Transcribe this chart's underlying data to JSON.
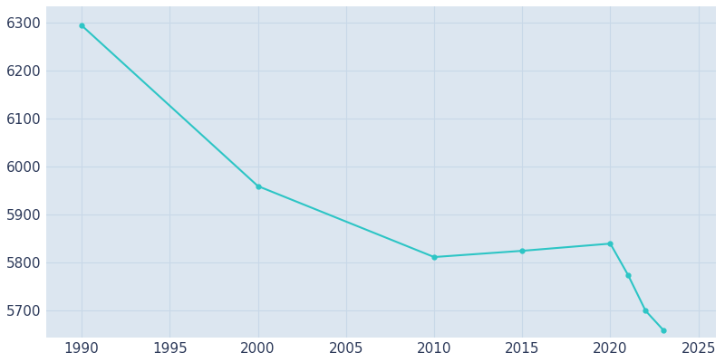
{
  "years": [
    1990,
    2000,
    2010,
    2015,
    2020,
    2021,
    2022,
    2023
  ],
  "population": [
    6295,
    5960,
    5812,
    5825,
    5840,
    5775,
    5700,
    5660
  ],
  "line_color": "#2dc5c5",
  "marker": "o",
  "marker_size": 3.5,
  "plot_bg_color": "#dce6f0",
  "fig_bg_color": "#ffffff",
  "grid_color": "#c8d8e8",
  "xlim": [
    1988,
    2026
  ],
  "ylim": [
    5645,
    6335
  ],
  "xticks": [
    1990,
    1995,
    2000,
    2005,
    2010,
    2015,
    2020,
    2025
  ],
  "yticks": [
    5700,
    5800,
    5900,
    6000,
    6100,
    6200,
    6300
  ],
  "tick_label_color": "#2d3a5a",
  "tick_label_size": 11
}
